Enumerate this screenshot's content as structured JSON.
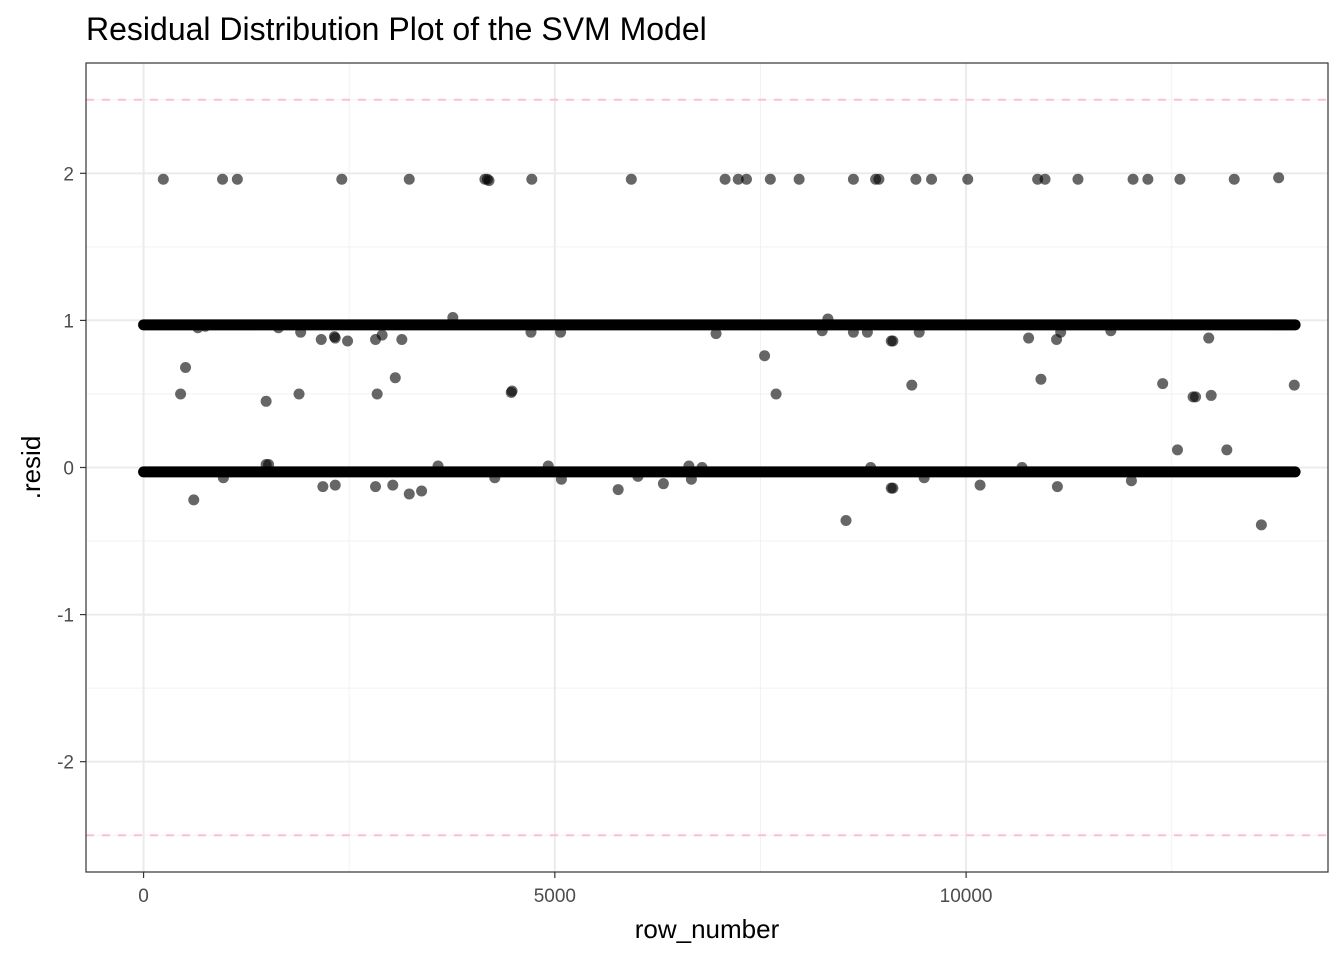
{
  "chart_data": {
    "type": "scatter",
    "title": "Residual Distribution Plot of the SVM Model",
    "xlabel": "row_number",
    "ylabel": ".resid",
    "xlim": [
      -700,
      14400
    ],
    "ylim": [
      -2.75,
      2.75
    ],
    "x_ticks": [
      0,
      5000,
      10000
    ],
    "x_tick_labels": [
      "0",
      "5000",
      "10000"
    ],
    "y_ticks": [
      -2,
      -1,
      0,
      1,
      2
    ],
    "y_tick_labels": [
      "-2",
      "-1",
      "0",
      "1",
      "2"
    ],
    "grid": true,
    "theme": "bw",
    "point_color": "#000000",
    "point_alpha": 0.6,
    "reference_lines": [
      {
        "y": 2.5,
        "style": "dashed",
        "color": "#ffc0cb"
      },
      {
        "y": -2.5,
        "style": "dashed",
        "color": "#ffc0cb"
      }
    ],
    "dense_bands": [
      {
        "y": 0.97,
        "x_from": 0,
        "x_to": 14000
      },
      {
        "y": -0.03,
        "x_from": 0,
        "x_to": 14000
      }
    ],
    "points": [
      [
        240,
        1.96
      ],
      [
        960,
        1.96
      ],
      [
        1140,
        1.96
      ],
      [
        2410,
        1.96
      ],
      [
        3230,
        1.96
      ],
      [
        4150,
        1.96
      ],
      [
        4180,
        1.96
      ],
      [
        4200,
        1.95
      ],
      [
        4720,
        1.96
      ],
      [
        5930,
        1.96
      ],
      [
        7070,
        1.96
      ],
      [
        7230,
        1.96
      ],
      [
        7330,
        1.96
      ],
      [
        7620,
        1.96
      ],
      [
        7970,
        1.96
      ],
      [
        8630,
        1.96
      ],
      [
        8900,
        1.96
      ],
      [
        8940,
        1.96
      ],
      [
        9390,
        1.96
      ],
      [
        9580,
        1.96
      ],
      [
        10020,
        1.96
      ],
      [
        10870,
        1.96
      ],
      [
        10960,
        1.96
      ],
      [
        11360,
        1.96
      ],
      [
        12030,
        1.96
      ],
      [
        12210,
        1.96
      ],
      [
        12600,
        1.96
      ],
      [
        13260,
        1.96
      ],
      [
        13800,
        1.97
      ],
      [
        3760,
        1.02
      ],
      [
        8320,
        1.01
      ],
      [
        1910,
        0.92
      ],
      [
        2160,
        0.87
      ],
      [
        2320,
        0.89
      ],
      [
        2330,
        0.88
      ],
      [
        2480,
        0.86
      ],
      [
        2820,
        0.87
      ],
      [
        2900,
        0.9
      ],
      [
        3140,
        0.87
      ],
      [
        4710,
        0.92
      ],
      [
        5070,
        0.92
      ],
      [
        6960,
        0.91
      ],
      [
        8250,
        0.93
      ],
      [
        8630,
        0.92
      ],
      [
        8800,
        0.92
      ],
      [
        9090,
        0.86
      ],
      [
        9110,
        0.86
      ],
      [
        9430,
        0.92
      ],
      [
        10760,
        0.88
      ],
      [
        11100,
        0.87
      ],
      [
        11150,
        0.92
      ],
      [
        11760,
        0.93
      ],
      [
        12950,
        0.88
      ],
      [
        660,
        0.95
      ],
      [
        750,
        0.96
      ],
      [
        1640,
        0.95
      ],
      [
        7550,
        0.76
      ],
      [
        510,
        0.68
      ],
      [
        3060,
        0.61
      ],
      [
        10910,
        0.6
      ],
      [
        9340,
        0.56
      ],
      [
        12390,
        0.57
      ],
      [
        13990,
        0.56
      ],
      [
        450,
        0.5
      ],
      [
        1890,
        0.5
      ],
      [
        2840,
        0.5
      ],
      [
        4470,
        0.51
      ],
      [
        4480,
        0.52
      ],
      [
        7690,
        0.5
      ],
      [
        12760,
        0.48
      ],
      [
        12790,
        0.48
      ],
      [
        12980,
        0.49
      ],
      [
        1490,
        0.45
      ],
      [
        1490,
        0.02
      ],
      [
        1520,
        0.02
      ],
      [
        3580,
        0.01
      ],
      [
        4920,
        0.01
      ],
      [
        6630,
        0.01
      ],
      [
        6790,
        0.0
      ],
      [
        8840,
        0.0
      ],
      [
        10680,
        0.0
      ],
      [
        12570,
        0.12
      ],
      [
        13170,
        0.12
      ],
      [
        610,
        -0.22
      ],
      [
        970,
        -0.07
      ],
      [
        2180,
        -0.13
      ],
      [
        2330,
        -0.12
      ],
      [
        2820,
        -0.13
      ],
      [
        3030,
        -0.12
      ],
      [
        3230,
        -0.18
      ],
      [
        3380,
        -0.16
      ],
      [
        4270,
        -0.07
      ],
      [
        5080,
        -0.08
      ],
      [
        5770,
        -0.15
      ],
      [
        6010,
        -0.06
      ],
      [
        6320,
        -0.11
      ],
      [
        6660,
        -0.08
      ],
      [
        9090,
        -0.14
      ],
      [
        9110,
        -0.14
      ],
      [
        10170,
        -0.12
      ],
      [
        11110,
        -0.13
      ],
      [
        12010,
        -0.09
      ],
      [
        9490,
        -0.07
      ],
      [
        8540,
        -0.36
      ],
      [
        13590,
        -0.39
      ]
    ]
  }
}
